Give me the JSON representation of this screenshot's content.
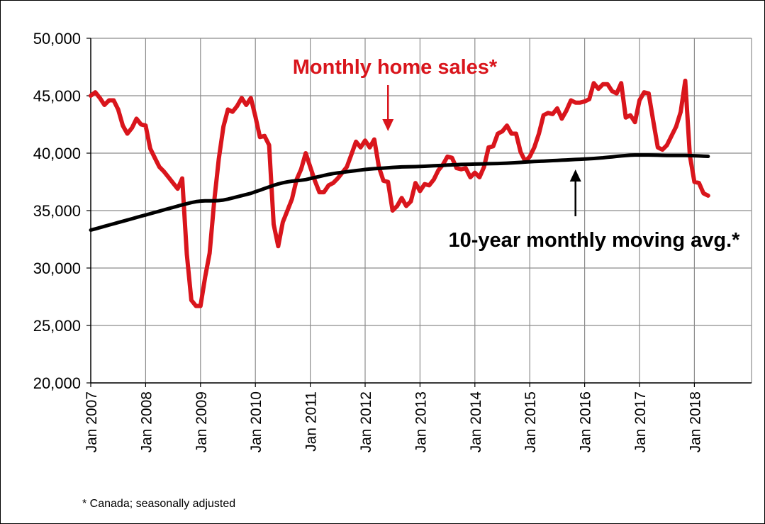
{
  "chart_data": {
    "type": "line",
    "title": "",
    "xlabel": "",
    "ylabel": "",
    "ylim": [
      20000,
      50000
    ],
    "yticks": [
      "20,000",
      "25,000",
      "30,000",
      "35,000",
      "40,000",
      "45,000",
      "50,000"
    ],
    "ytick_values": [
      20000,
      25000,
      30000,
      35000,
      40000,
      45000,
      50000
    ],
    "xticks": [
      "Jan 2007",
      "Jan 2008",
      "Jan 2009",
      "Jan 2010",
      "Jan 2011",
      "Jan 2012",
      "Jan 2013",
      "Jan 2014",
      "Jan 2015",
      "Jan 2016",
      "Jan 2017",
      "Jan 2018"
    ],
    "start": "Jan 2007",
    "frequency": "monthly",
    "grid": "vertical and horizontal",
    "series": [
      {
        "name": "Monthly home sales*",
        "color": "#d9151c",
        "values": [
          45000,
          45300,
          44800,
          44200,
          44600,
          44600,
          43800,
          42400,
          41700,
          42200,
          43000,
          42500,
          42400,
          40400,
          39600,
          38800,
          38400,
          37900,
          37400,
          36900,
          37800,
          31200,
          27200,
          26700,
          26700,
          29200,
          31300,
          35800,
          39500,
          42300,
          43800,
          43600,
          44100,
          44800,
          44200,
          44800,
          43200,
          41400,
          41500,
          40700,
          33800,
          31900,
          34000,
          35000,
          36000,
          37700,
          38600,
          40000,
          38800,
          37600,
          36600,
          36600,
          37200,
          37400,
          37800,
          38300,
          38800,
          39900,
          41000,
          40500,
          41100,
          40500,
          41200,
          38800,
          37600,
          37500,
          35000,
          35400,
          36100,
          35400,
          35800,
          37400,
          36700,
          37300,
          37200,
          37700,
          38500,
          39000,
          39700,
          39600,
          38700,
          38600,
          38700,
          37900,
          38300,
          37900,
          38800,
          40500,
          40600,
          41700,
          41900,
          42400,
          41700,
          41700,
          40100,
          39300,
          39700,
          40500,
          41700,
          43300,
          43500,
          43400,
          43900,
          43000,
          43700,
          44600,
          44400,
          44400,
          44500,
          44700,
          46100,
          45600,
          46000,
          46000,
          45400,
          45200,
          46100,
          43100,
          43300,
          42700,
          44600,
          45300,
          45200,
          42800,
          40500,
          40300,
          40700,
          41500,
          42300,
          43600,
          46300,
          39800,
          37500,
          37400,
          36500,
          36300
        ]
      },
      {
        "name": "10-year monthly moving avg.*",
        "color": "#000000",
        "values": [
          33300,
          33410,
          33520,
          33630,
          33740,
          33850,
          33960,
          34070,
          34180,
          34290,
          34400,
          34510,
          34620,
          34730,
          34840,
          34950,
          35060,
          35170,
          35280,
          35390,
          35500,
          35600,
          35700,
          35780,
          35830,
          35850,
          35850,
          35850,
          35870,
          35920,
          36000,
          36100,
          36200,
          36300,
          36400,
          36500,
          36640,
          36780,
          36920,
          37060,
          37200,
          37320,
          37420,
          37500,
          37560,
          37600,
          37640,
          37700,
          37790,
          37880,
          37970,
          38060,
          38150,
          38220,
          38280,
          38330,
          38380,
          38430,
          38480,
          38530,
          38580,
          38620,
          38650,
          38670,
          38700,
          38730,
          38760,
          38780,
          38800,
          38810,
          38820,
          38830,
          38840,
          38860,
          38880,
          38900,
          38920,
          38940,
          38960,
          38980,
          39000,
          39020,
          39030,
          39040,
          39050,
          39060,
          39070,
          39080,
          39090,
          39100,
          39110,
          39130,
          39150,
          39170,
          39200,
          39230,
          39250,
          39270,
          39290,
          39310,
          39330,
          39350,
          39370,
          39390,
          39410,
          39430,
          39450,
          39470,
          39490,
          39510,
          39540,
          39570,
          39600,
          39640,
          39680,
          39720,
          39760,
          39790,
          39820,
          39840,
          39840,
          39840,
          39840,
          39830,
          39820,
          39810,
          39800,
          39800,
          39800,
          39800,
          39800,
          39790,
          39780,
          39760,
          39740,
          39720
        ]
      }
    ],
    "annotations": [
      {
        "text": "Monthly home sales*",
        "color": "#d9151c",
        "target_month": 65
      },
      {
        "text": "10-year monthly moving avg.*",
        "color": "#000000",
        "target_month": 106
      }
    ]
  },
  "footnote": "* Canada; seasonally adjusted"
}
